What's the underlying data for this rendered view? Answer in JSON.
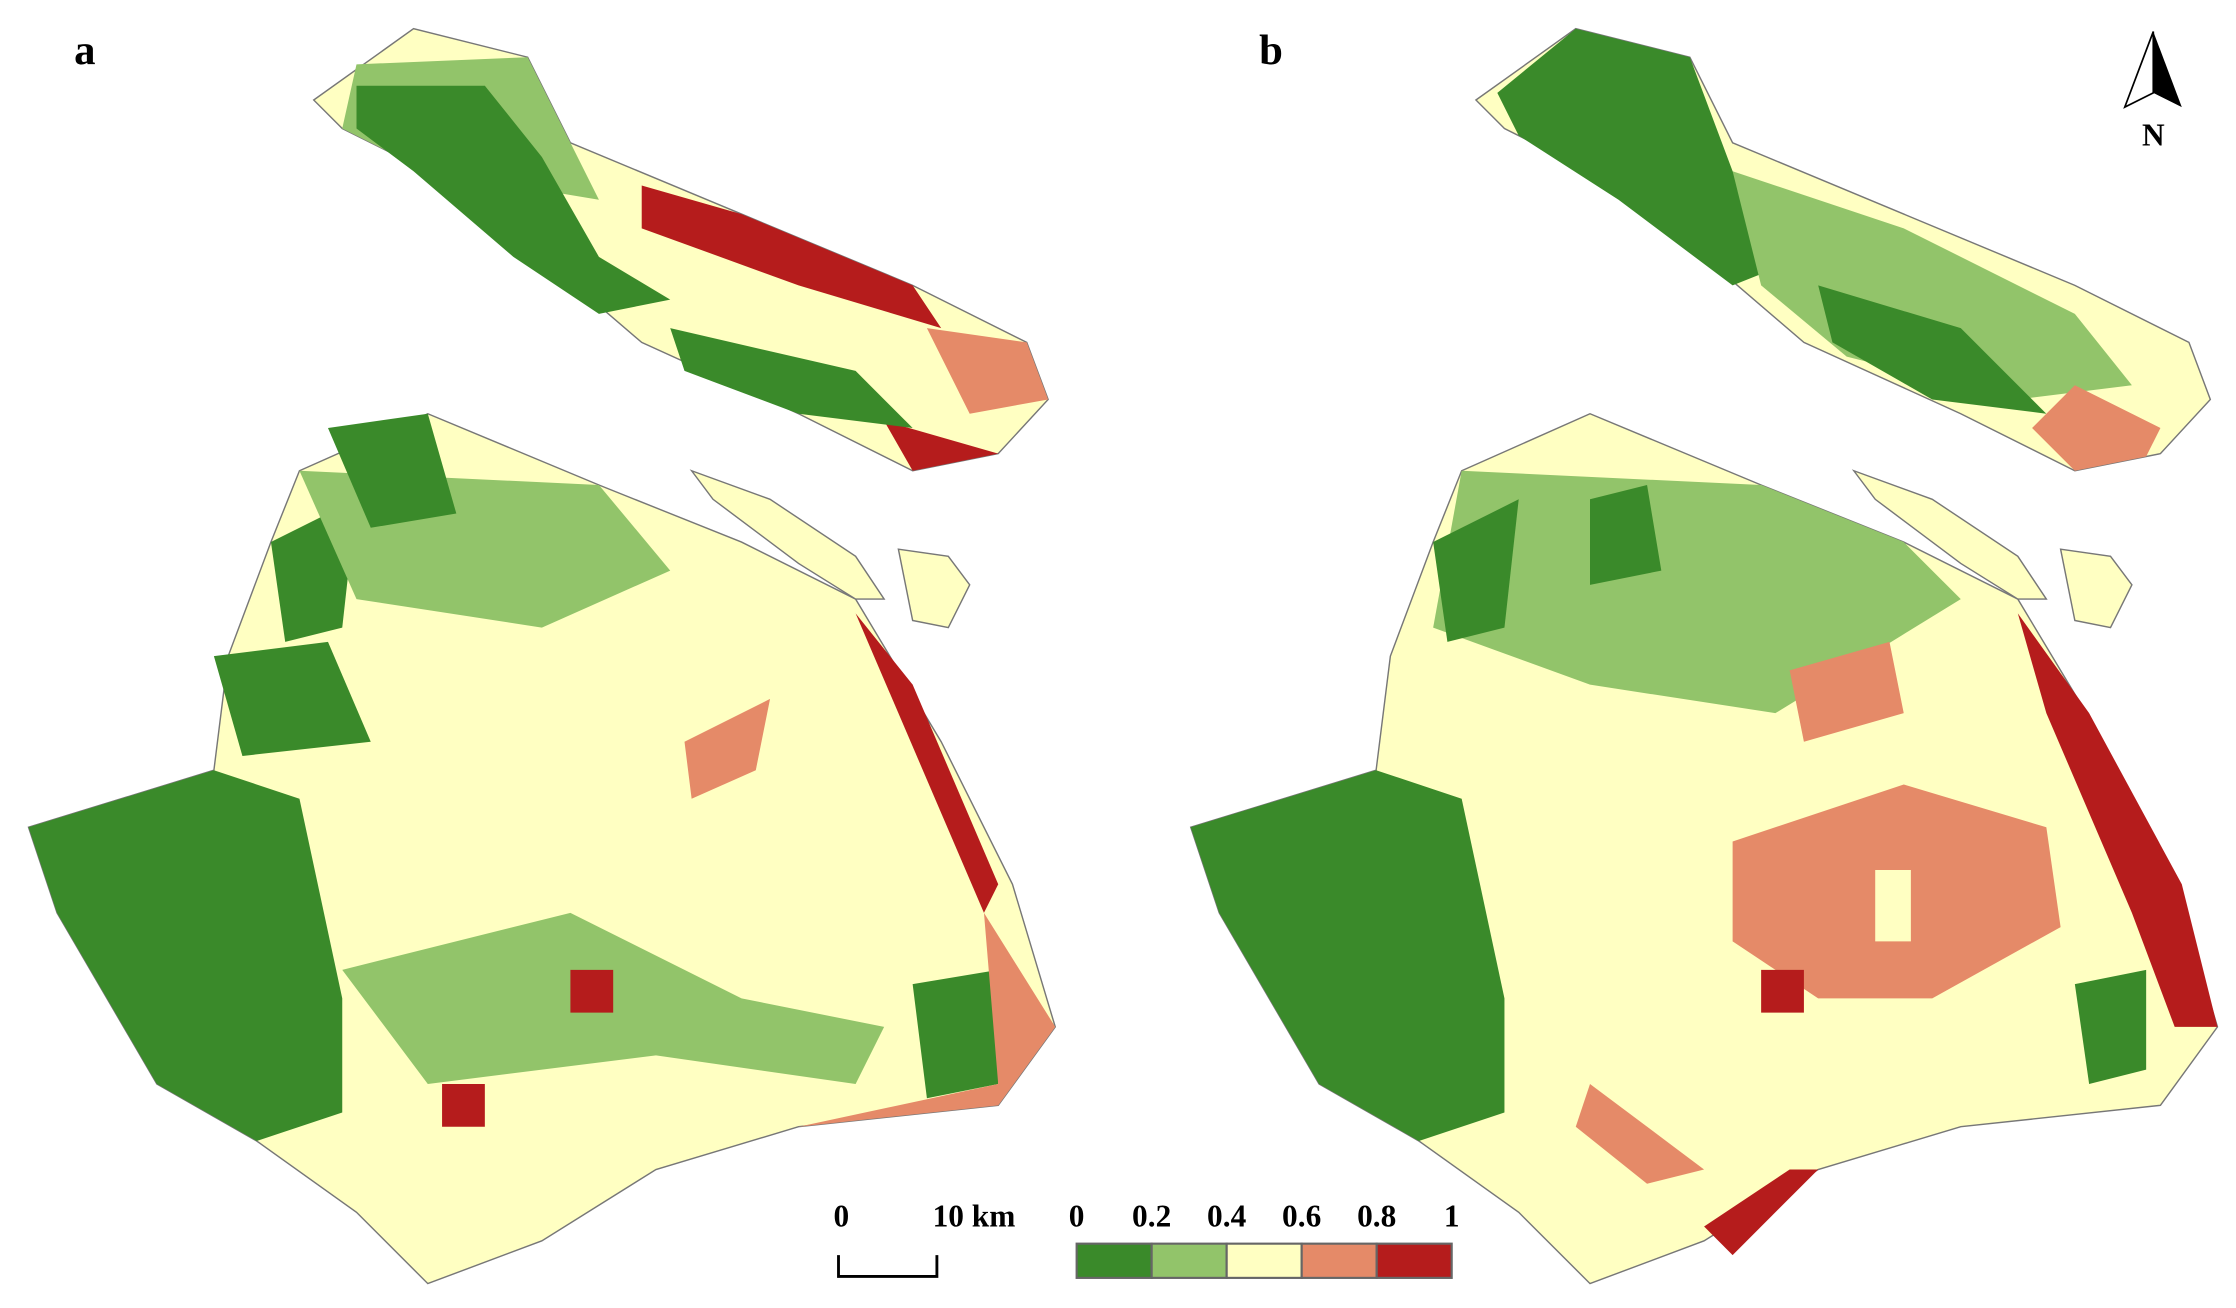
{
  "panels": [
    {
      "label": "a"
    },
    {
      "label": "b"
    }
  ],
  "north_arrow": {
    "label": "N"
  },
  "scale_bar": {
    "labels": [
      "0",
      "10 km"
    ]
  },
  "legend": {
    "ticks": [
      0,
      0.2,
      0.4,
      0.6,
      0.8,
      1
    ],
    "colors": [
      "#3a8a2a",
      "#92c46a",
      "#ffffc2",
      "#e58a68",
      "#b51c1c"
    ]
  }
}
